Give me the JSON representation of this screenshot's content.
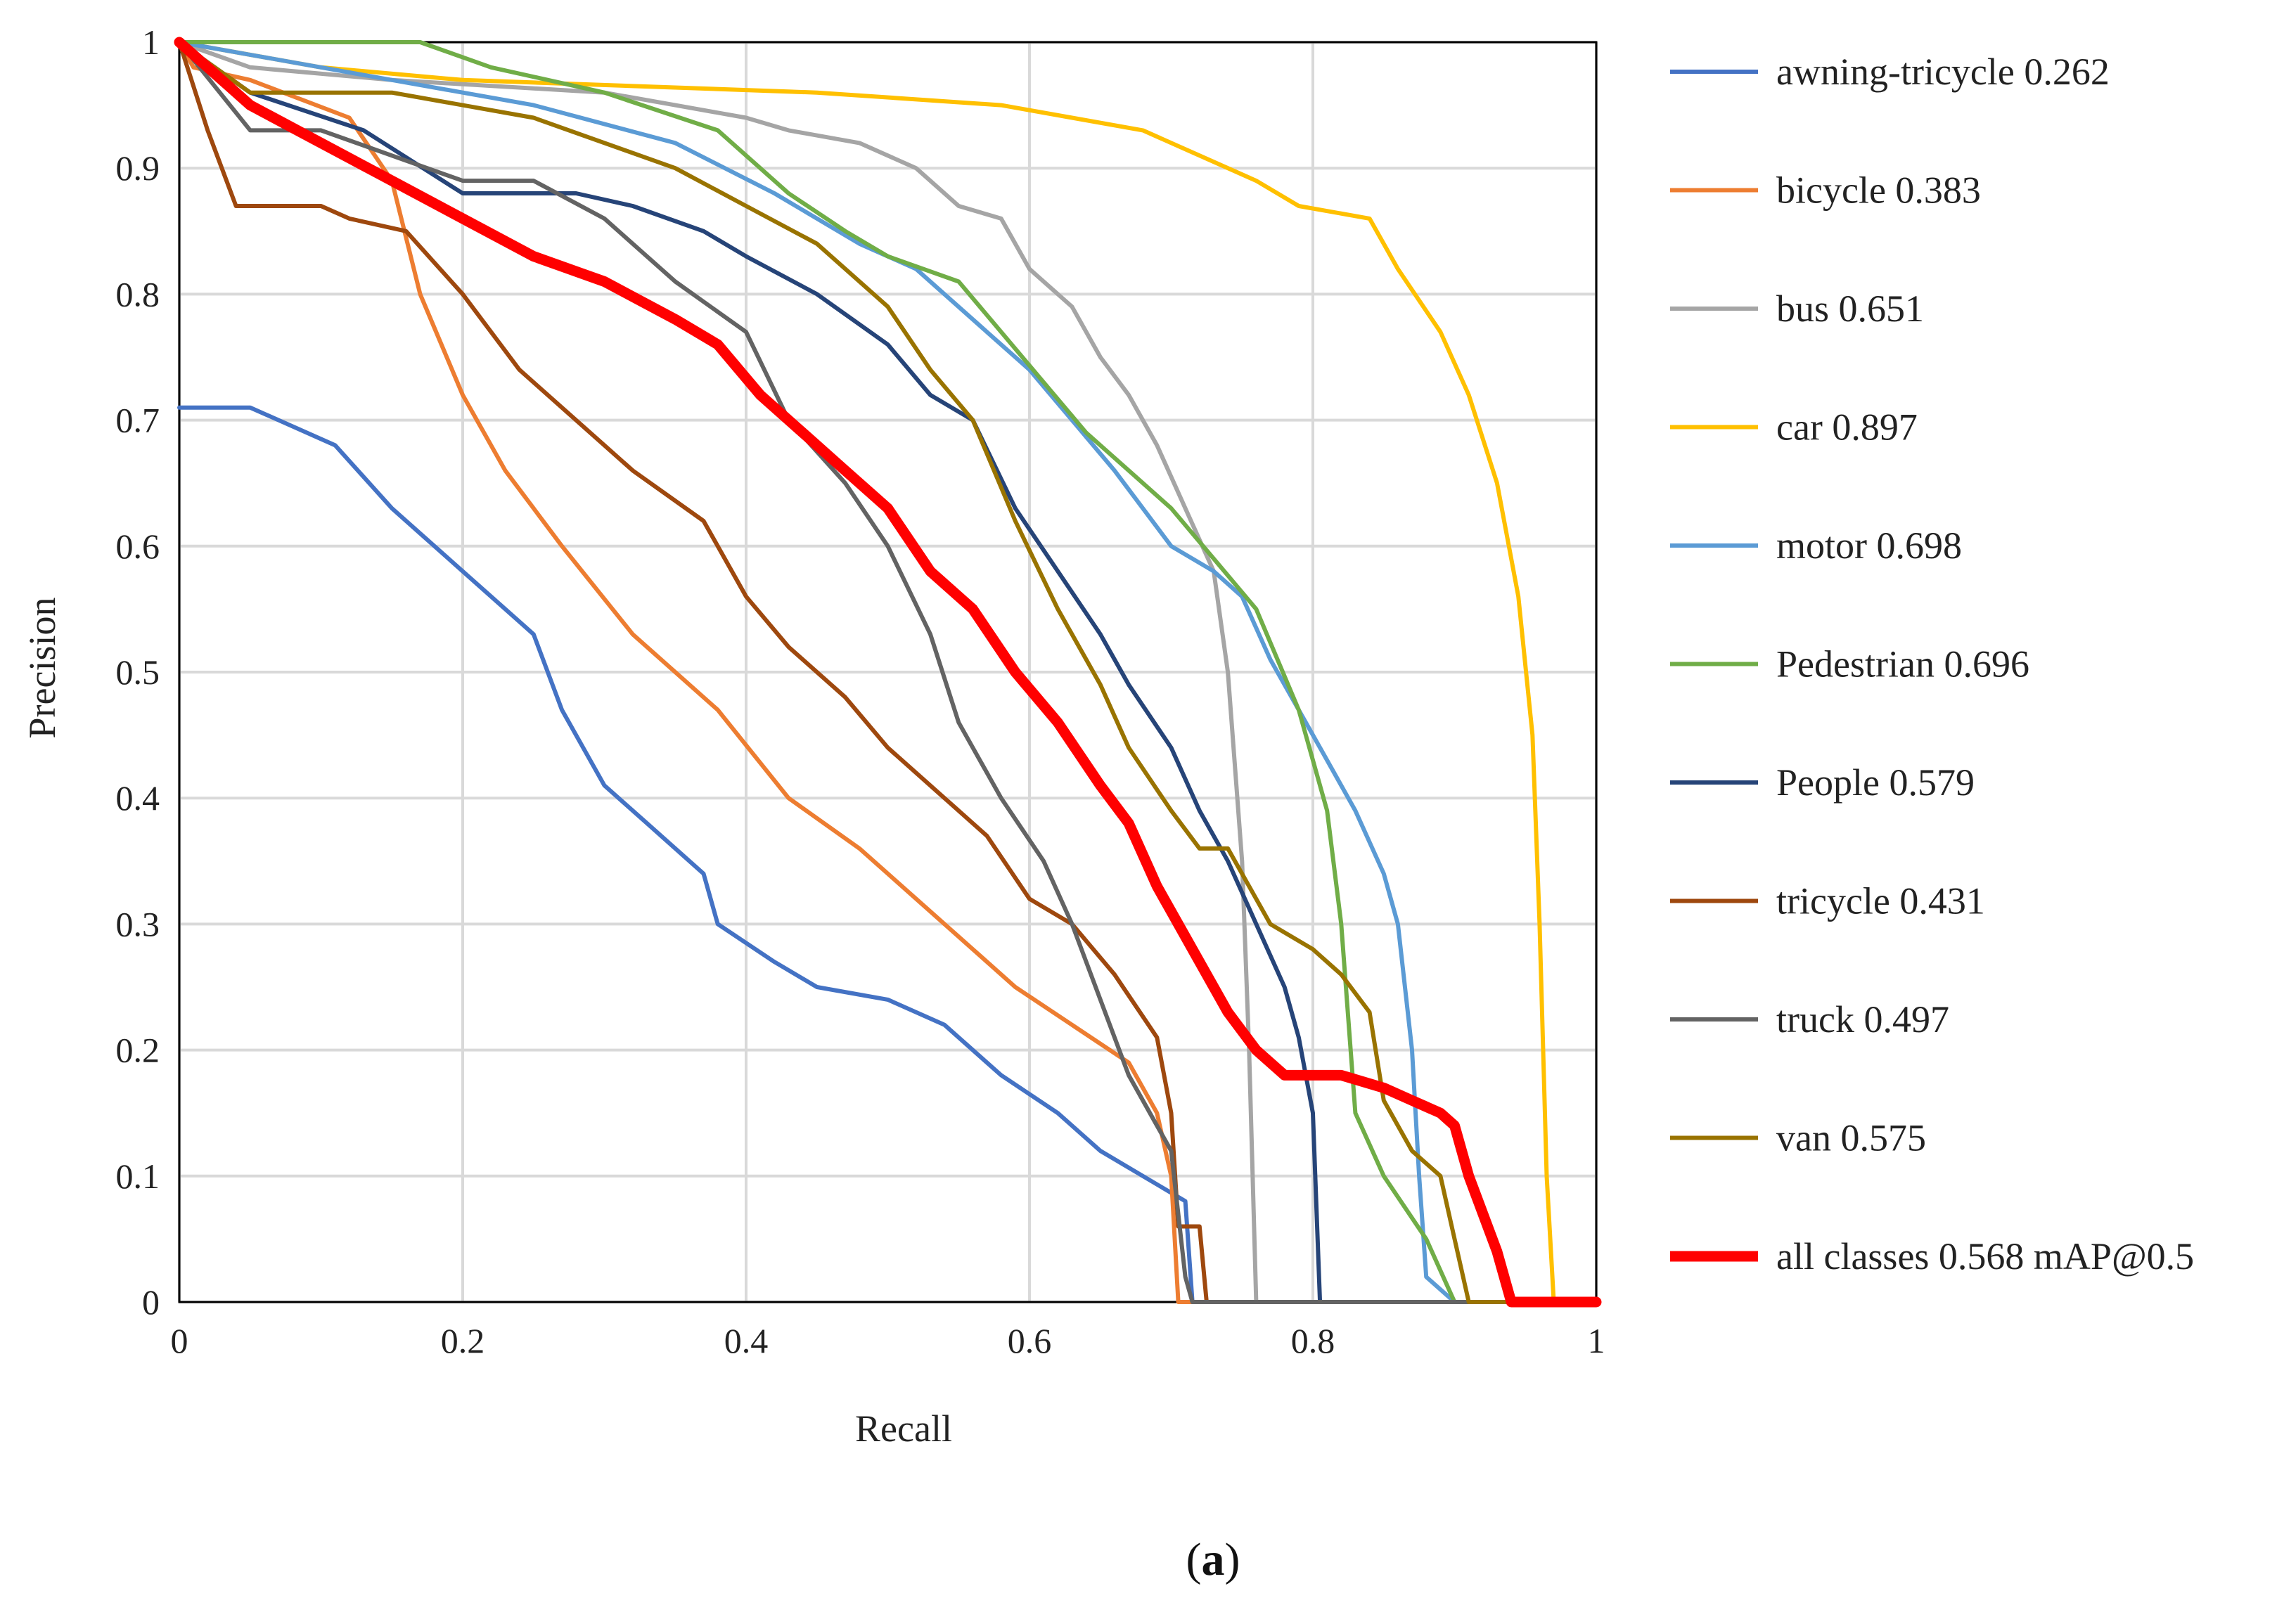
{
  "chart_data": {
    "type": "line",
    "title": "",
    "xlabel": "Recall",
    "ylabel": "Precision",
    "xlim": [
      0,
      1
    ],
    "ylim": [
      0,
      1
    ],
    "grid": true,
    "legend_position": "right",
    "x_ticks": [
      "0",
      "0.2",
      "0.4",
      "0.6",
      "0.8",
      "1"
    ],
    "y_ticks": [
      "0",
      "0.1",
      "0.2",
      "0.3",
      "0.4",
      "0.5",
      "0.6",
      "0.7",
      "0.8",
      "0.9",
      "1"
    ],
    "series": [
      {
        "name": "awning-tricycle 0.262",
        "color": "#4472C4",
        "width": "normal",
        "points": [
          [
            0,
            0.71
          ],
          [
            0.05,
            0.71
          ],
          [
            0.11,
            0.68
          ],
          [
            0.15,
            0.63
          ],
          [
            0.2,
            0.58
          ],
          [
            0.25,
            0.53
          ],
          [
            0.27,
            0.47
          ],
          [
            0.3,
            0.41
          ],
          [
            0.33,
            0.38
          ],
          [
            0.37,
            0.34
          ],
          [
            0.38,
            0.3
          ],
          [
            0.42,
            0.27
          ],
          [
            0.45,
            0.25
          ],
          [
            0.5,
            0.24
          ],
          [
            0.54,
            0.22
          ],
          [
            0.58,
            0.18
          ],
          [
            0.62,
            0.15
          ],
          [
            0.65,
            0.12
          ],
          [
            0.68,
            0.1
          ],
          [
            0.71,
            0.08
          ],
          [
            0.715,
            0.0
          ],
          [
            1.0,
            0.0
          ]
        ]
      },
      {
        "name": "bicycle 0.383",
        "color": "#ED7D31",
        "width": "normal",
        "points": [
          [
            0,
            1.0
          ],
          [
            0.01,
            0.98
          ],
          [
            0.05,
            0.97
          ],
          [
            0.12,
            0.94
          ],
          [
            0.15,
            0.89
          ],
          [
            0.17,
            0.8
          ],
          [
            0.2,
            0.72
          ],
          [
            0.23,
            0.66
          ],
          [
            0.27,
            0.6
          ],
          [
            0.32,
            0.53
          ],
          [
            0.38,
            0.47
          ],
          [
            0.43,
            0.4
          ],
          [
            0.48,
            0.36
          ],
          [
            0.53,
            0.31
          ],
          [
            0.56,
            0.28
          ],
          [
            0.59,
            0.25
          ],
          [
            0.63,
            0.22
          ],
          [
            0.67,
            0.19
          ],
          [
            0.69,
            0.15
          ],
          [
            0.7,
            0.1
          ],
          [
            0.705,
            0.0
          ],
          [
            1.0,
            0.0
          ]
        ]
      },
      {
        "name": "bus 0.651",
        "color": "#A5A5A5",
        "width": "normal",
        "points": [
          [
            0,
            1.0
          ],
          [
            0.05,
            0.98
          ],
          [
            0.15,
            0.97
          ],
          [
            0.3,
            0.96
          ],
          [
            0.35,
            0.95
          ],
          [
            0.4,
            0.94
          ],
          [
            0.43,
            0.93
          ],
          [
            0.48,
            0.92
          ],
          [
            0.52,
            0.9
          ],
          [
            0.55,
            0.87
          ],
          [
            0.58,
            0.86
          ],
          [
            0.6,
            0.82
          ],
          [
            0.63,
            0.79
          ],
          [
            0.65,
            0.75
          ],
          [
            0.67,
            0.72
          ],
          [
            0.69,
            0.68
          ],
          [
            0.71,
            0.63
          ],
          [
            0.73,
            0.58
          ],
          [
            0.74,
            0.5
          ],
          [
            0.75,
            0.35
          ],
          [
            0.755,
            0.2
          ],
          [
            0.76,
            0.0
          ],
          [
            1.0,
            0.0
          ]
        ]
      },
      {
        "name": "car 0.897",
        "color": "#FFC000",
        "width": "normal",
        "points": [
          [
            0,
            1.0
          ],
          [
            0.1,
            0.98
          ],
          [
            0.2,
            0.97
          ],
          [
            0.45,
            0.96
          ],
          [
            0.58,
            0.95
          ],
          [
            0.63,
            0.94
          ],
          [
            0.68,
            0.93
          ],
          [
            0.72,
            0.91
          ],
          [
            0.76,
            0.89
          ],
          [
            0.79,
            0.87
          ],
          [
            0.84,
            0.86
          ],
          [
            0.86,
            0.82
          ],
          [
            0.89,
            0.77
          ],
          [
            0.91,
            0.72
          ],
          [
            0.93,
            0.65
          ],
          [
            0.945,
            0.56
          ],
          [
            0.955,
            0.45
          ],
          [
            0.96,
            0.3
          ],
          [
            0.965,
            0.1
          ],
          [
            0.97,
            0.0
          ],
          [
            1.0,
            0.0
          ]
        ]
      },
      {
        "name": "motor 0.698",
        "color": "#5B9BD5",
        "width": "normal",
        "points": [
          [
            0,
            1.0
          ],
          [
            0.05,
            0.99
          ],
          [
            0.15,
            0.97
          ],
          [
            0.25,
            0.95
          ],
          [
            0.35,
            0.92
          ],
          [
            0.42,
            0.88
          ],
          [
            0.48,
            0.84
          ],
          [
            0.52,
            0.82
          ],
          [
            0.57,
            0.77
          ],
          [
            0.6,
            0.74
          ],
          [
            0.63,
            0.7
          ],
          [
            0.66,
            0.66
          ],
          [
            0.7,
            0.6
          ],
          [
            0.73,
            0.58
          ],
          [
            0.75,
            0.56
          ],
          [
            0.77,
            0.51
          ],
          [
            0.79,
            0.47
          ],
          [
            0.81,
            0.43
          ],
          [
            0.83,
            0.39
          ],
          [
            0.85,
            0.34
          ],
          [
            0.86,
            0.3
          ],
          [
            0.87,
            0.2
          ],
          [
            0.875,
            0.1
          ],
          [
            0.88,
            0.02
          ],
          [
            0.9,
            0.0
          ],
          [
            1.0,
            0.0
          ]
        ]
      },
      {
        "name": "Pedestrian 0.696",
        "color": "#70AD47",
        "width": "normal",
        "points": [
          [
            0,
            1.0
          ],
          [
            0.17,
            1.0
          ],
          [
            0.22,
            0.98
          ],
          [
            0.3,
            0.96
          ],
          [
            0.38,
            0.93
          ],
          [
            0.43,
            0.88
          ],
          [
            0.47,
            0.85
          ],
          [
            0.5,
            0.83
          ],
          [
            0.55,
            0.81
          ],
          [
            0.58,
            0.77
          ],
          [
            0.61,
            0.73
          ],
          [
            0.64,
            0.69
          ],
          [
            0.67,
            0.66
          ],
          [
            0.7,
            0.63
          ],
          [
            0.73,
            0.59
          ],
          [
            0.76,
            0.55
          ],
          [
            0.79,
            0.47
          ],
          [
            0.81,
            0.39
          ],
          [
            0.82,
            0.3
          ],
          [
            0.83,
            0.15
          ],
          [
            0.85,
            0.1
          ],
          [
            0.88,
            0.05
          ],
          [
            0.9,
            0.0
          ],
          [
            1.0,
            0.0
          ]
        ]
      },
      {
        "name": "People 0.579",
        "color": "#264478",
        "width": "normal",
        "points": [
          [
            0,
            1.0
          ],
          [
            0.05,
            0.96
          ],
          [
            0.13,
            0.93
          ],
          [
            0.2,
            0.88
          ],
          [
            0.28,
            0.88
          ],
          [
            0.32,
            0.87
          ],
          [
            0.37,
            0.85
          ],
          [
            0.4,
            0.83
          ],
          [
            0.45,
            0.8
          ],
          [
            0.5,
            0.76
          ],
          [
            0.53,
            0.72
          ],
          [
            0.56,
            0.7
          ],
          [
            0.59,
            0.63
          ],
          [
            0.62,
            0.58
          ],
          [
            0.65,
            0.53
          ],
          [
            0.67,
            0.49
          ],
          [
            0.7,
            0.44
          ],
          [
            0.72,
            0.39
          ],
          [
            0.74,
            0.35
          ],
          [
            0.76,
            0.3
          ],
          [
            0.78,
            0.25
          ],
          [
            0.79,
            0.21
          ],
          [
            0.8,
            0.15
          ],
          [
            0.805,
            0.0
          ],
          [
            1.0,
            0.0
          ]
        ]
      },
      {
        "name": "tricycle 0.431",
        "color": "#9E480E",
        "width": "normal",
        "points": [
          [
            0,
            1.0
          ],
          [
            0.02,
            0.93
          ],
          [
            0.04,
            0.87
          ],
          [
            0.1,
            0.87
          ],
          [
            0.12,
            0.86
          ],
          [
            0.16,
            0.85
          ],
          [
            0.2,
            0.8
          ],
          [
            0.24,
            0.74
          ],
          [
            0.28,
            0.7
          ],
          [
            0.32,
            0.66
          ],
          [
            0.37,
            0.62
          ],
          [
            0.4,
            0.56
          ],
          [
            0.43,
            0.52
          ],
          [
            0.47,
            0.48
          ],
          [
            0.5,
            0.44
          ],
          [
            0.54,
            0.4
          ],
          [
            0.57,
            0.37
          ],
          [
            0.6,
            0.32
          ],
          [
            0.63,
            0.3
          ],
          [
            0.66,
            0.26
          ],
          [
            0.69,
            0.21
          ],
          [
            0.7,
            0.15
          ],
          [
            0.705,
            0.06
          ],
          [
            0.72,
            0.06
          ],
          [
            0.725,
            0.0
          ],
          [
            1.0,
            0.0
          ]
        ]
      },
      {
        "name": "truck 0.497",
        "color": "#636363",
        "width": "normal",
        "points": [
          [
            0,
            1.0
          ],
          [
            0.05,
            0.93
          ],
          [
            0.1,
            0.93
          ],
          [
            0.15,
            0.91
          ],
          [
            0.2,
            0.89
          ],
          [
            0.25,
            0.89
          ],
          [
            0.3,
            0.86
          ],
          [
            0.35,
            0.81
          ],
          [
            0.4,
            0.77
          ],
          [
            0.43,
            0.7
          ],
          [
            0.47,
            0.65
          ],
          [
            0.5,
            0.6
          ],
          [
            0.53,
            0.53
          ],
          [
            0.55,
            0.46
          ],
          [
            0.58,
            0.4
          ],
          [
            0.61,
            0.35
          ],
          [
            0.63,
            0.3
          ],
          [
            0.65,
            0.24
          ],
          [
            0.67,
            0.18
          ],
          [
            0.69,
            0.14
          ],
          [
            0.7,
            0.12
          ],
          [
            0.71,
            0.02
          ],
          [
            0.715,
            0.0
          ],
          [
            1.0,
            0.0
          ]
        ]
      },
      {
        "name": "van 0.575",
        "color": "#997300",
        "width": "normal",
        "points": [
          [
            0,
            1.0
          ],
          [
            0.05,
            0.96
          ],
          [
            0.15,
            0.96
          ],
          [
            0.25,
            0.94
          ],
          [
            0.35,
            0.9
          ],
          [
            0.4,
            0.87
          ],
          [
            0.45,
            0.84
          ],
          [
            0.5,
            0.79
          ],
          [
            0.53,
            0.74
          ],
          [
            0.56,
            0.7
          ],
          [
            0.59,
            0.62
          ],
          [
            0.62,
            0.55
          ],
          [
            0.65,
            0.49
          ],
          [
            0.67,
            0.44
          ],
          [
            0.7,
            0.39
          ],
          [
            0.72,
            0.36
          ],
          [
            0.74,
            0.36
          ],
          [
            0.77,
            0.3
          ],
          [
            0.8,
            0.28
          ],
          [
            0.82,
            0.26
          ],
          [
            0.84,
            0.23
          ],
          [
            0.85,
            0.16
          ],
          [
            0.87,
            0.12
          ],
          [
            0.89,
            0.1
          ],
          [
            0.9,
            0.05
          ],
          [
            0.91,
            0.0
          ],
          [
            1.0,
            0.0
          ]
        ]
      },
      {
        "name": "all classes 0.568 mAP@0.5",
        "color": "#FF0000",
        "width": "thick",
        "points": [
          [
            0,
            1.0
          ],
          [
            0.05,
            0.95
          ],
          [
            0.1,
            0.92
          ],
          [
            0.15,
            0.89
          ],
          [
            0.2,
            0.86
          ],
          [
            0.25,
            0.83
          ],
          [
            0.3,
            0.81
          ],
          [
            0.35,
            0.78
          ],
          [
            0.38,
            0.76
          ],
          [
            0.41,
            0.72
          ],
          [
            0.44,
            0.69
          ],
          [
            0.47,
            0.66
          ],
          [
            0.5,
            0.63
          ],
          [
            0.53,
            0.58
          ],
          [
            0.56,
            0.55
          ],
          [
            0.59,
            0.5
          ],
          [
            0.62,
            0.46
          ],
          [
            0.65,
            0.41
          ],
          [
            0.67,
            0.38
          ],
          [
            0.69,
            0.33
          ],
          [
            0.72,
            0.27
          ],
          [
            0.74,
            0.23
          ],
          [
            0.76,
            0.2
          ],
          [
            0.78,
            0.18
          ],
          [
            0.82,
            0.18
          ],
          [
            0.85,
            0.17
          ],
          [
            0.87,
            0.16
          ],
          [
            0.89,
            0.15
          ],
          [
            0.9,
            0.14
          ],
          [
            0.91,
            0.1
          ],
          [
            0.93,
            0.04
          ],
          [
            0.94,
            0.0
          ],
          [
            1.0,
            0.0
          ]
        ]
      }
    ]
  },
  "caption": {
    "open": "(",
    "letter": "a",
    "close": ")"
  }
}
